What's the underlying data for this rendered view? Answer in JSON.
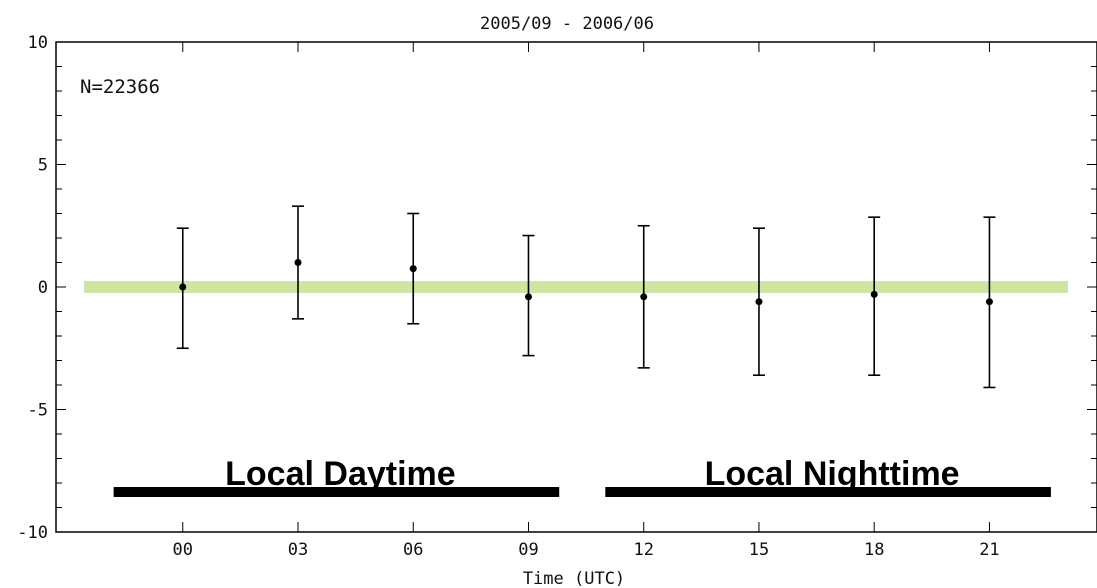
{
  "chart_data": {
    "type": "scatter",
    "title": "2005/09 - 2006/06",
    "xlabel": "Time (UTC)",
    "ylabel": "",
    "x_categories": [
      "00",
      "03",
      "06",
      "09",
      "12",
      "15",
      "18",
      "21"
    ],
    "ylim": [
      -10,
      10
    ],
    "yticks": [
      -10,
      -5,
      0,
      5,
      10
    ],
    "annotation": "N=22366",
    "series": [
      {
        "points": [
          {
            "x": "00",
            "y": 0.0,
            "low": -2.5,
            "high": 2.4
          },
          {
            "x": "03",
            "y": 1.0,
            "low": -1.3,
            "high": 3.3
          },
          {
            "x": "06",
            "y": 0.75,
            "low": -1.5,
            "high": 3.0
          },
          {
            "x": "09",
            "y": -0.4,
            "low": -2.8,
            "high": 2.1
          },
          {
            "x": "12",
            "y": -0.4,
            "low": -3.3,
            "high": 2.5
          },
          {
            "x": "15",
            "y": -0.6,
            "low": -3.6,
            "high": 2.4
          },
          {
            "x": "18",
            "y": -0.3,
            "low": -3.6,
            "high": 2.85
          },
          {
            "x": "21",
            "y": -0.6,
            "low": -4.1,
            "high": 2.85
          }
        ]
      }
    ],
    "reference_line": {
      "y": 0,
      "color": "#cfe6a3"
    },
    "bands": [
      {
        "label": "Local Daytime",
        "x_start": -1.8,
        "x_end": 9.8
      },
      {
        "label": "Local Nighttime",
        "x_start": 11.0,
        "x_end": 22.6
      }
    ],
    "x_range_hours": [
      -3.3,
      23.8
    ],
    "grid": false
  }
}
